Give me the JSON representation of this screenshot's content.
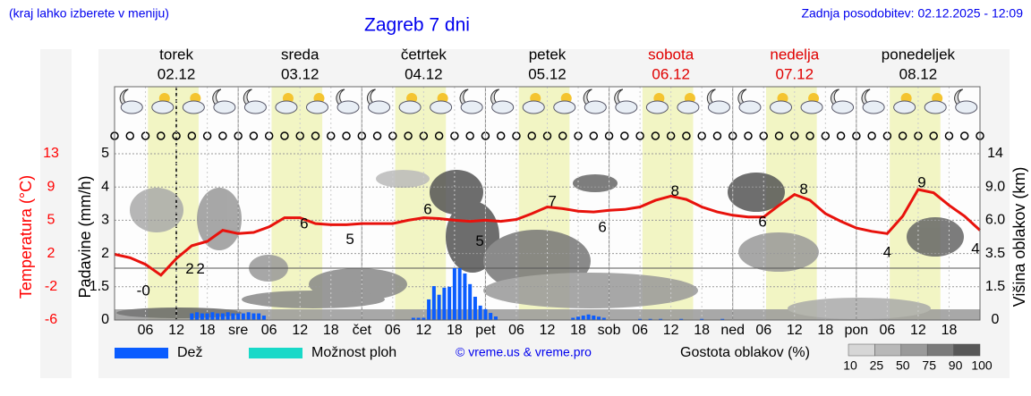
{
  "chart_data": {
    "type": "meteogram",
    "subtitle": "(kraj lahko izberete v meniju)",
    "title": "Zagreb 7 dni",
    "updated": "Zadnja posodobitev: 02.12.2025 - 12:09",
    "days": [
      {
        "name": "torek",
        "date": "02.12",
        "color": "#000000"
      },
      {
        "name": "sreda",
        "date": "03.12",
        "color": "#000000"
      },
      {
        "name": "četrtek",
        "date": "04.12",
        "color": "#000000"
      },
      {
        "name": "petek",
        "date": "05.12",
        "color": "#000000"
      },
      {
        "name": "sobota",
        "date": "06.12",
        "color": "#e00000"
      },
      {
        "name": "nedelja",
        "date": "07.12",
        "color": "#e00000"
      },
      {
        "name": "ponedeljek",
        "date": "08.12",
        "color": "#000000"
      }
    ],
    "xlim": [
      0,
      168
    ],
    "xticks": [
      {
        "value": 6,
        "label": "06"
      },
      {
        "value": 12,
        "label": "12"
      },
      {
        "value": 18,
        "label": "18"
      },
      {
        "value": 24,
        "label": "sre"
      },
      {
        "value": 30,
        "label": "06"
      },
      {
        "value": 36,
        "label": "12"
      },
      {
        "value": 42,
        "label": "18"
      },
      {
        "value": 48,
        "label": "čet"
      },
      {
        "value": 54,
        "label": "06"
      },
      {
        "value": 60,
        "label": "12"
      },
      {
        "value": 66,
        "label": "18"
      },
      {
        "value": 72,
        "label": "pet"
      },
      {
        "value": 78,
        "label": "06"
      },
      {
        "value": 84,
        "label": "12"
      },
      {
        "value": 90,
        "label": "18"
      },
      {
        "value": 96,
        "label": "sob"
      },
      {
        "value": 102,
        "label": "06"
      },
      {
        "value": 108,
        "label": "12"
      },
      {
        "value": 114,
        "label": "18"
      },
      {
        "value": 120,
        "label": "ned"
      },
      {
        "value": 126,
        "label": "06"
      },
      {
        "value": 132,
        "label": "12"
      },
      {
        "value": 138,
        "label": "18"
      },
      {
        "value": 144,
        "label": "pon"
      },
      {
        "value": 150,
        "label": "06"
      },
      {
        "value": 156,
        "label": "12"
      },
      {
        "value": 162,
        "label": "18"
      }
    ],
    "ylabel": "Padavine (mm/h)",
    "ylim": [
      0,
      5
    ],
    "yticks": [
      0,
      1.5,
      2,
      3,
      4,
      5
    ],
    "temp_label": "Temperatura (°C)",
    "templim": [
      -6,
      13
    ],
    "tempticks": [
      -6,
      -2,
      2,
      5,
      9,
      13
    ],
    "temp_color": "#ff0000",
    "y2label": "Višina oblakov (km)",
    "y2lim": [
      0,
      14
    ],
    "y2ticks": [
      0,
      1.5,
      3.5,
      {
        "value": 6,
        "label": "6.0"
      },
      {
        "value": 9,
        "label": "9.0"
      },
      14
    ],
    "grid": true,
    "temperature": {
      "color": "#e8120c",
      "x": [
        0,
        3,
        6,
        9,
        12,
        15,
        18,
        21,
        24,
        27,
        30,
        33,
        36,
        39,
        42,
        45,
        48,
        51,
        54,
        57,
        60,
        63,
        66,
        69,
        72,
        75,
        78,
        81,
        84,
        87,
        90,
        93,
        96,
        99,
        102,
        105,
        108,
        111,
        114,
        117,
        120,
        123,
        126,
        129,
        132,
        135,
        138,
        141,
        144,
        147,
        150,
        153,
        156,
        159,
        162,
        165,
        168
      ],
      "values": [
        1.9,
        1.5,
        0.7,
        -0.6,
        1.4,
        2.7,
        3.1,
        4.1,
        3.8,
        3.9,
        4.4,
        5.3,
        5.3,
        4.7,
        4.6,
        4.6,
        4.7,
        4.7,
        4.7,
        5.0,
        5.3,
        5.2,
        5.0,
        4.9,
        5.0,
        4.9,
        5.1,
        5.8,
        6.6,
        6.4,
        6.1,
        6.0,
        6.2,
        6.3,
        6.6,
        7.4,
        7.9,
        7.5,
        6.6,
        6.0,
        5.6,
        5.4,
        5.4,
        6.8,
        8.1,
        7.4,
        5.8,
        4.9,
        4.3,
        4.0,
        3.8,
        5.5,
        8.7,
        8.3,
        6.8,
        5.5,
        4.1
      ]
    },
    "temp_labels": {
      "x": [
        5.6,
        14.6,
        16.7,
        36.8,
        45.7,
        60.8,
        70.9,
        85,
        94.7,
        108.8,
        125.8,
        133.8,
        150,
        156.7,
        168
      ],
      "values": [
        0,
        2,
        2,
        6,
        5,
        6,
        5,
        7,
        6,
        8,
        6,
        8,
        4,
        9,
        4
      ],
      "value_labels": [
        "-0",
        "2",
        "2",
        "6",
        "5",
        "6",
        "5",
        "7",
        "6",
        "8",
        "6",
        "8",
        "4",
        "9",
        "4"
      ]
    },
    "series": [
      {
        "name": "Dež",
        "color": "#0a5cff",
        "x": [
          15,
          16,
          17,
          18,
          19,
          20,
          21,
          22,
          23,
          24,
          25,
          26,
          27,
          28,
          29,
          58,
          59,
          60,
          61,
          62,
          63,
          64,
          65,
          66,
          67,
          68,
          69,
          70,
          71,
          72,
          73,
          74,
          89,
          90,
          91,
          92,
          93,
          94,
          95,
          102,
          104,
          106,
          110,
          114,
          118
        ],
        "values": [
          0.3,
          0.35,
          0.3,
          0.3,
          0.35,
          0.3,
          0.3,
          0.35,
          0.3,
          0.3,
          0.3,
          0.35,
          0.3,
          0.3,
          0.2,
          0.1,
          0.1,
          0.1,
          0.93,
          1.51,
          1.14,
          1.46,
          1.5,
          1.78,
          1.78,
          1.7,
          1.54,
          1.05,
          0.65,
          0.49,
          0.32,
          0.16,
          0.1,
          0.15,
          0.2,
          0.25,
          0.2,
          0.15,
          0.1,
          0.05,
          0.05,
          0.05,
          0.05,
          0.05,
          0.05
        ]
      },
      {
        "name": "Možnost ploh",
        "color": "#19d9c8",
        "x": [],
        "values": []
      }
    ],
    "credit": "© vreme.us & vreme.pro",
    "cloud_legend": {
      "title": "Gostota oblakov (%)",
      "levels": [
        10,
        25,
        50,
        75,
        90,
        100
      ],
      "colors": [
        "#d6d6d6",
        "#b8b8b8",
        "#9a9a9a",
        "#7a7a7a",
        "#575757"
      ]
    }
  }
}
